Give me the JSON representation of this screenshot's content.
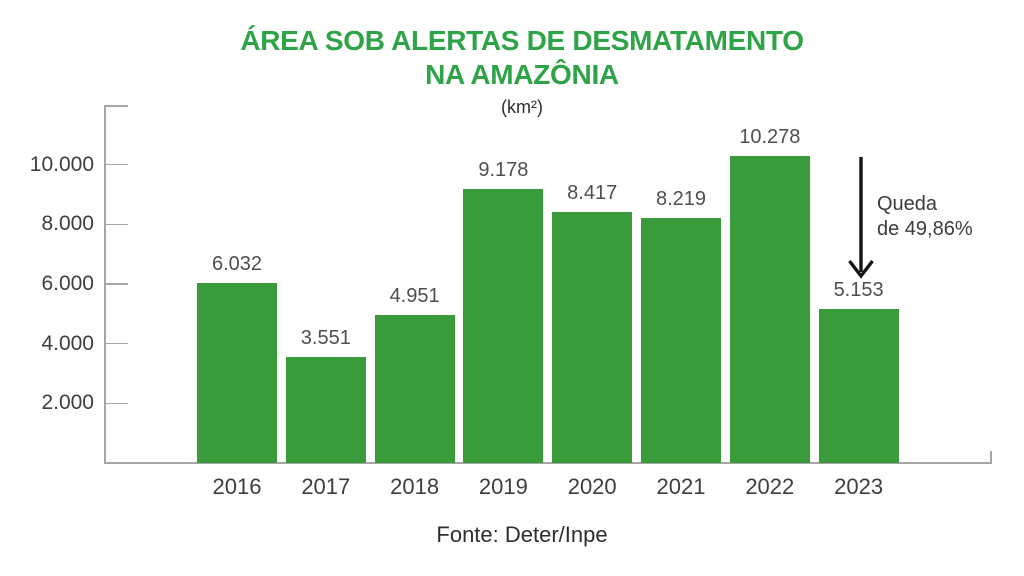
{
  "chart_data": {
    "type": "bar",
    "title": "ÁREA SOB ALERTAS DE DESMATAMENTO NA AMAZÔNIA",
    "title_lines": [
      "ÁREA SOB ALERTAS DE DESMATAMENTO",
      "NA AMAZÔNIA"
    ],
    "unit_label": "(km²)",
    "categories": [
      "2016",
      "2017",
      "2018",
      "2019",
      "2020",
      "2021",
      "2022",
      "2023"
    ],
    "values": [
      6032,
      3551,
      4951,
      9178,
      8417,
      8219,
      10278,
      5153
    ],
    "value_labels": [
      "6.032",
      "3.551",
      "4.951",
      "9.178",
      "8.417",
      "8.219",
      "10.278",
      "5.153"
    ],
    "xlabel": "",
    "ylabel": "",
    "ylim": [
      0,
      12000
    ],
    "yticks": [
      2000,
      4000,
      6000,
      8000,
      10000
    ],
    "ytick_labels": [
      "2.000",
      "4.000",
      "6.000",
      "8.000",
      "10.000"
    ],
    "grid": false,
    "legend": false,
    "bar_color": "#3A9B3C",
    "title_color": "#2FA347",
    "axis_color": "#A6A6A6",
    "annotation": {
      "lines": [
        "Queda",
        "de 49,86%"
      ],
      "text": "Queda de 49,86%",
      "arrow_direction": "down",
      "target_category": "2023"
    },
    "source": "Fonte: Deter/Inpe"
  }
}
